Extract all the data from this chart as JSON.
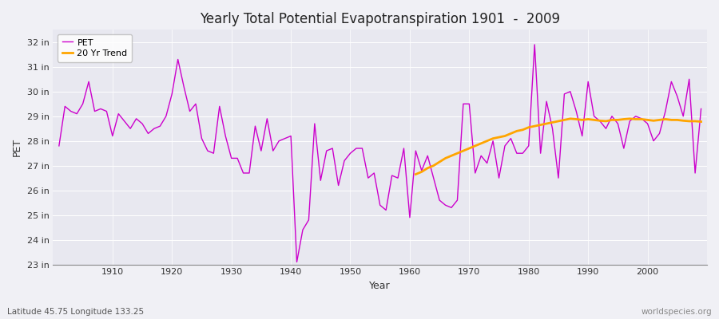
{
  "title": "Yearly Total Potential Evapotranspiration 1901  -  2009",
  "xlabel": "Year",
  "ylabel": "PET",
  "subtitle_left": "Latitude 45.75 Longitude 133.25",
  "subtitle_right": "worldspecies.org",
  "background_color": "#f0f0f5",
  "plot_bg_color": "#e8e8f0",
  "pet_color": "#cc00cc",
  "trend_color": "#ffa500",
  "ylim_min": 23,
  "ylim_max": 32.5,
  "years": [
    1901,
    1902,
    1903,
    1904,
    1905,
    1906,
    1907,
    1908,
    1909,
    1910,
    1911,
    1912,
    1913,
    1914,
    1915,
    1916,
    1917,
    1918,
    1919,
    1920,
    1921,
    1922,
    1923,
    1924,
    1925,
    1926,
    1927,
    1928,
    1929,
    1930,
    1931,
    1932,
    1933,
    1934,
    1935,
    1936,
    1937,
    1938,
    1939,
    1940,
    1941,
    1942,
    1943,
    1944,
    1945,
    1946,
    1947,
    1948,
    1949,
    1950,
    1951,
    1952,
    1953,
    1954,
    1955,
    1956,
    1957,
    1958,
    1959,
    1960,
    1961,
    1962,
    1963,
    1964,
    1965,
    1966,
    1967,
    1968,
    1969,
    1970,
    1971,
    1972,
    1973,
    1974,
    1975,
    1976,
    1977,
    1978,
    1979,
    1980,
    1981,
    1982,
    1983,
    1984,
    1985,
    1986,
    1987,
    1988,
    1989,
    1990,
    1991,
    1992,
    1993,
    1994,
    1995,
    1996,
    1997,
    1998,
    1999,
    2000,
    2001,
    2002,
    2003,
    2004,
    2005,
    2006,
    2007,
    2008,
    2009
  ],
  "pet_values": [
    27.8,
    29.4,
    29.2,
    29.1,
    29.5,
    30.4,
    29.2,
    29.3,
    29.2,
    28.2,
    29.1,
    28.8,
    28.5,
    28.9,
    28.7,
    28.3,
    28.5,
    28.6,
    29.0,
    29.9,
    31.3,
    30.2,
    29.2,
    29.5,
    28.1,
    27.6,
    27.5,
    29.4,
    28.2,
    27.3,
    27.3,
    26.7,
    26.7,
    28.6,
    27.6,
    28.9,
    27.6,
    28.0,
    28.1,
    28.2,
    23.1,
    24.4,
    24.8,
    28.7,
    26.4,
    27.6,
    27.7,
    26.2,
    27.2,
    27.5,
    27.7,
    27.7,
    26.5,
    26.7,
    25.4,
    25.2,
    26.6,
    26.5,
    27.7,
    24.9,
    27.6,
    26.8,
    27.4,
    26.5,
    25.6,
    25.4,
    25.3,
    25.6,
    29.5,
    29.5,
    26.7,
    27.4,
    27.1,
    28.0,
    26.5,
    27.8,
    28.1,
    27.5,
    27.5,
    27.8,
    31.9,
    27.5,
    29.6,
    28.5,
    26.5,
    29.9,
    30.0,
    29.2,
    28.2,
    30.4,
    29.0,
    28.8,
    28.5,
    29.0,
    28.7,
    27.7,
    28.8,
    29.0,
    28.9,
    28.7,
    28.0,
    28.3,
    29.2,
    30.4,
    29.8,
    29.0,
    30.5,
    26.7,
    29.3
  ],
  "trend_values_years": [
    1961,
    1962,
    1963,
    1964,
    1965,
    1966,
    1967,
    1968,
    1969,
    1970,
    1971,
    1972,
    1973,
    1974,
    1975,
    1976,
    1977,
    1978,
    1979,
    1980,
    1981,
    1982,
    1983,
    1984,
    1985,
    1986,
    1987,
    1988,
    1989,
    1990,
    1991,
    1992,
    1993,
    1994,
    1995,
    1996,
    1997,
    1998,
    1999,
    2000,
    2001,
    2002,
    2003,
    2004,
    2005,
    2006,
    2007,
    2008,
    2009
  ],
  "trend_values": [
    26.65,
    26.75,
    26.9,
    27.0,
    27.15,
    27.3,
    27.4,
    27.5,
    27.6,
    27.7,
    27.8,
    27.9,
    28.0,
    28.1,
    28.15,
    28.2,
    28.3,
    28.4,
    28.45,
    28.55,
    28.6,
    28.65,
    28.7,
    28.75,
    28.8,
    28.85,
    28.9,
    28.88,
    28.85,
    28.88,
    28.85,
    28.82,
    28.8,
    28.85,
    28.85,
    28.88,
    28.9,
    28.88,
    28.88,
    28.85,
    28.82,
    28.85,
    28.88,
    28.85,
    28.85,
    28.82,
    28.8,
    28.8,
    28.78
  ]
}
